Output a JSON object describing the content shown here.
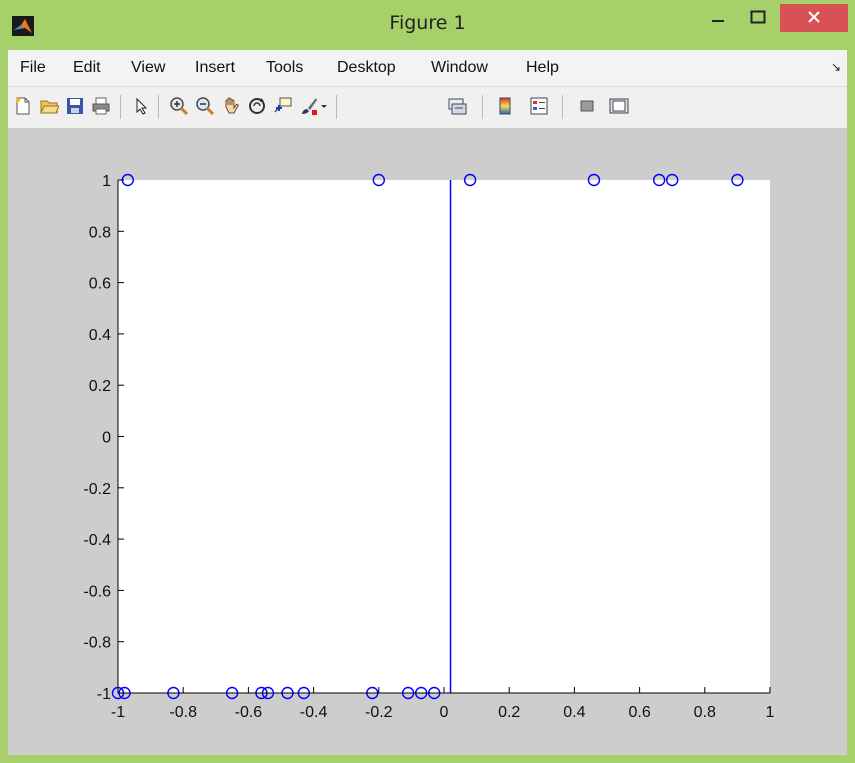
{
  "window": {
    "title": "Figure 1",
    "colors": {
      "frame": "#a6d16a",
      "close": "#d85255"
    }
  },
  "menu": {
    "items": [
      "File",
      "Edit",
      "View",
      "Insert",
      "Tools",
      "Desktop",
      "Window",
      "Help"
    ]
  },
  "toolbar": {
    "icons": [
      "new-figure-icon",
      "open-file-icon",
      "save-icon",
      "print-icon",
      "select-arrow-icon",
      "zoom-in-icon",
      "zoom-out-icon",
      "pan-hand-icon",
      "rotate-3d-icon",
      "data-cursor-icon",
      "brush-icon",
      "link-plot-icon",
      "colorbar-icon",
      "legend-icon",
      "hide-plot-tools-icon",
      "show-plot-tools-icon"
    ]
  },
  "chart_data": {
    "type": "scatter",
    "title": "",
    "xlabel": "",
    "ylabel": "",
    "xlim": [
      -1,
      1
    ],
    "ylim": [
      -1,
      1
    ],
    "xticks": [
      "-1",
      "-0.8",
      "-0.6",
      "-0.4",
      "-0.2",
      "0",
      "0.2",
      "0.4",
      "0.6",
      "0.8",
      "1"
    ],
    "yticks": [
      "1",
      "0.8",
      "0.6",
      "0.4",
      "0.2",
      "0",
      "-0.2",
      "-0.4",
      "-0.6",
      "-0.8",
      "-1"
    ],
    "grid": false,
    "marker_color": "#0000ff",
    "series": [
      {
        "marker": "circle",
        "points": [
          {
            "x": -0.97,
            "y": 1
          },
          {
            "x": -0.2,
            "y": 1
          },
          {
            "x": 0.08,
            "y": 1
          },
          {
            "x": 0.46,
            "y": 1
          },
          {
            "x": 0.66,
            "y": 1
          },
          {
            "x": 0.7,
            "y": 1
          },
          {
            "x": 0.9,
            "y": 1
          },
          {
            "x": -1.0,
            "y": -1
          },
          {
            "x": -0.98,
            "y": -1
          },
          {
            "x": -0.83,
            "y": -1
          },
          {
            "x": -0.65,
            "y": -1
          },
          {
            "x": -0.56,
            "y": -1
          },
          {
            "x": -0.54,
            "y": -1
          },
          {
            "x": -0.48,
            "y": -1
          },
          {
            "x": -0.43,
            "y": -1
          },
          {
            "x": -0.22,
            "y": -1
          },
          {
            "x": -0.11,
            "y": -1
          },
          {
            "x": -0.07,
            "y": -1
          },
          {
            "x": -0.03,
            "y": -1
          }
        ]
      }
    ],
    "vertical_line": {
      "x": 0.02,
      "y_from": -1,
      "y_to": 1,
      "color": "#0000ff"
    }
  }
}
